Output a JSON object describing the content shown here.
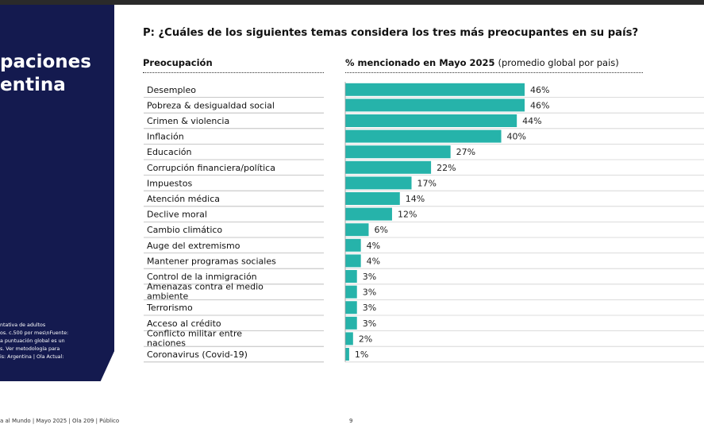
{
  "sidebar": {
    "title": "paciones\nentina",
    "note": "ntativa de adultos\nos. c.500 por mes\\nFuente:\na puntuación global es un\ns. Ver metodología para\nis: Argentina | Ola Actual:"
  },
  "question": "P: ¿Cuáles de los siguientes temas considera los tres más preocupantes en su país?",
  "headers": {
    "category": "Preocupación",
    "value": "% mencionado en Mayo 2025",
    "value_note": "(promedio global por pais)"
  },
  "chart_data": {
    "type": "bar",
    "orientation": "horizontal",
    "categories": [
      "Desempleo",
      "Pobreza & desigualdad social",
      "Crimen & violencia",
      "Inflación",
      "Educación",
      "Corrupción financiera/política",
      "Impuestos",
      "Atención médica",
      "Declive moral",
      "Cambio climático",
      "Auge del extremismo",
      "Mantener programas sociales",
      "Control de la inmigración",
      "Amenazas contra el medio ambiente",
      "Terrorismo",
      "Acceso al crédito",
      "Conflicto militar entre naciones",
      "Coronavirus (Covid-19)"
    ],
    "values": [
      46,
      46,
      44,
      40,
      27,
      22,
      17,
      14,
      12,
      6,
      4,
      4,
      3,
      3,
      3,
      3,
      2,
      1
    ],
    "value_suffix": "%",
    "grid": true,
    "bar_color": "#26b3aa"
  },
  "footer": {
    "left": "a al Mundo | Mayo 2025 | Ola 209 | Público",
    "page": "9"
  }
}
